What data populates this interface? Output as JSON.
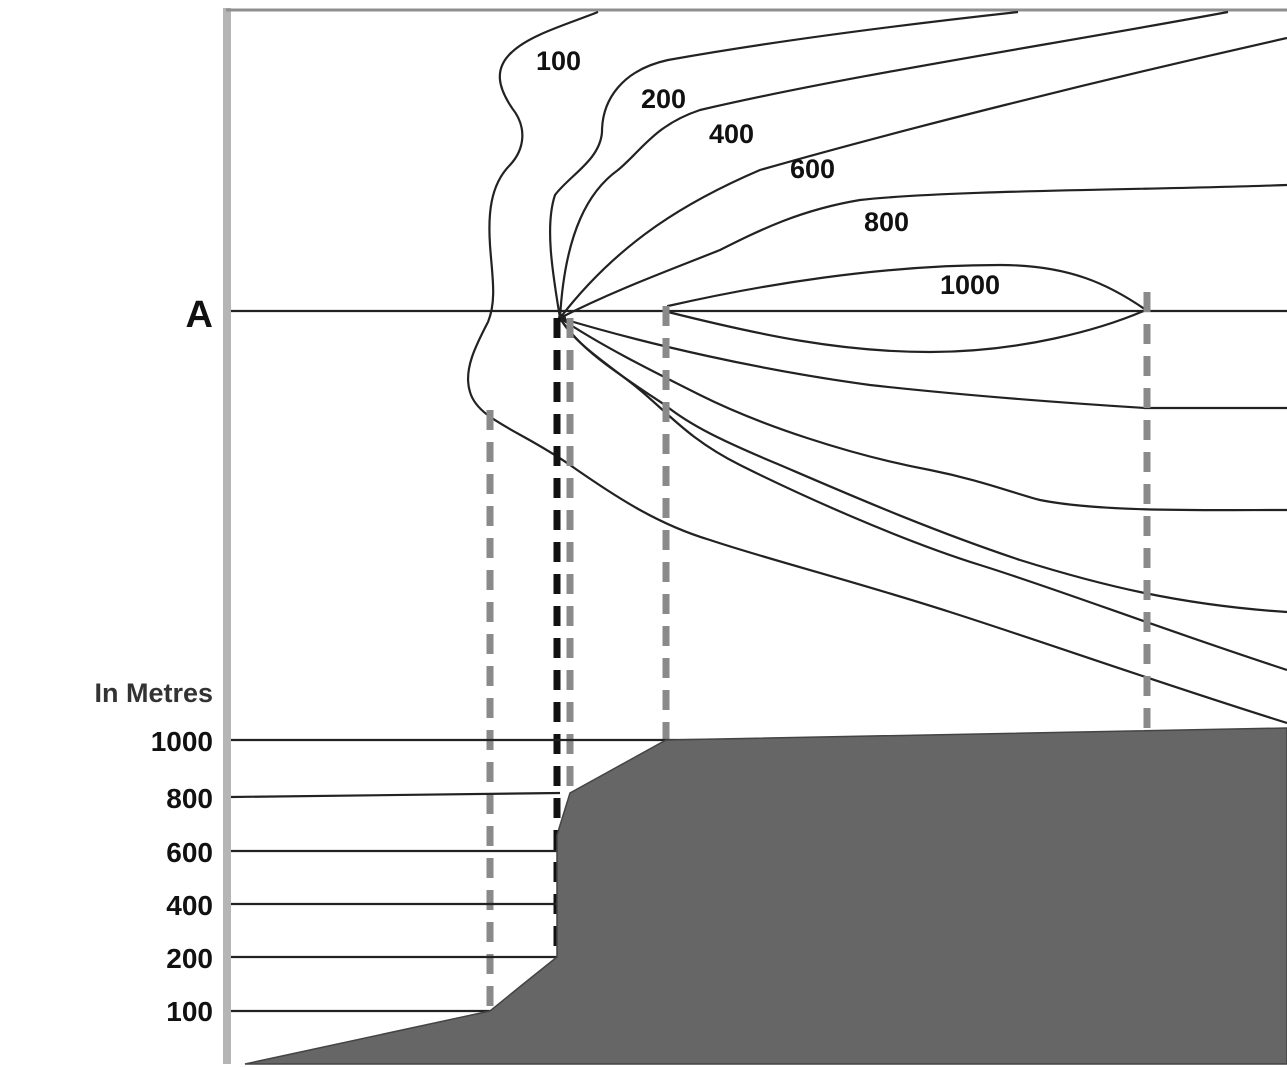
{
  "section_line": {
    "label": "A"
  },
  "contour_labels": [
    "100",
    "200",
    "400",
    "600",
    "800",
    "1000"
  ],
  "profile": {
    "unit_label": "In Metres",
    "height_labels": [
      "1000",
      "800",
      "600",
      "400",
      "200",
      "100"
    ]
  },
  "colors": {
    "terrain": "#666666",
    "contour_line": "#222222",
    "frame": "#b5b5b5",
    "projection_dash": "#8a8a8a",
    "projection_dash_dark": "#111111"
  }
}
